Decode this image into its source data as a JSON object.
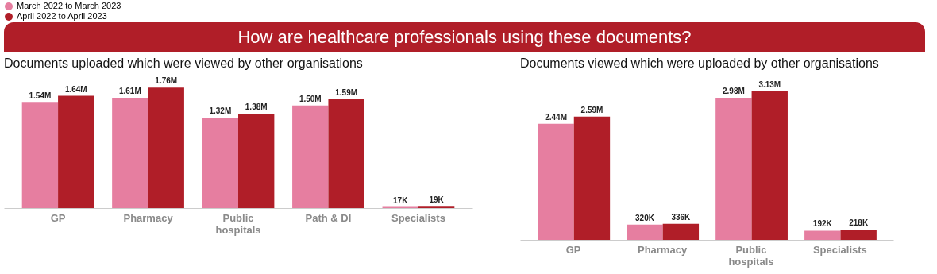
{
  "chart_data": [
    {
      "type": "bar",
      "title": "How are healthcare professionals using these documents?",
      "subtitle": "Documents uploaded which were viewed by other organisations",
      "categories": [
        "GP",
        "Pharmacy",
        "Public hospitals",
        "Path & DI",
        "Specialists"
      ],
      "legend": "top left",
      "series": [
        {
          "name": "March 2022 to March 2023",
          "color": "#e67ea0",
          "values": [
            1540000,
            1610000,
            1320000,
            1500000,
            17000
          ],
          "value_labels": [
            "1.54M",
            "1.61M",
            "1.32M",
            "1.50M",
            "17K"
          ]
        },
        {
          "name": "April 2022 to April 2023",
          "color": "#b01e28",
          "values": [
            1640000,
            1760000,
            1380000,
            1590000,
            19000
          ],
          "value_labels": [
            "1.64M",
            "1.76M",
            "1.38M",
            "1.59M",
            "19K"
          ]
        }
      ]
    },
    {
      "type": "bar",
      "subtitle": "Documents viewed which were uploaded by other organisations",
      "categories": [
        "GP",
        "Pharmacy",
        "Public hospitals",
        "Specialists"
      ],
      "series": [
        {
          "name": "March 2022 to March 2023",
          "color": "#e67ea0",
          "values": [
            2440000,
            320000,
            2980000,
            192000
          ],
          "value_labels": [
            "2.44M",
            "320K",
            "2.98M",
            "192K"
          ]
        },
        {
          "name": "April 2022 to April 2023",
          "color": "#b01e28",
          "values": [
            2590000,
            336000,
            3130000,
            218000
          ],
          "value_labels": [
            "2.59M",
            "336K",
            "3.13M",
            "218K"
          ]
        }
      ]
    }
  ]
}
